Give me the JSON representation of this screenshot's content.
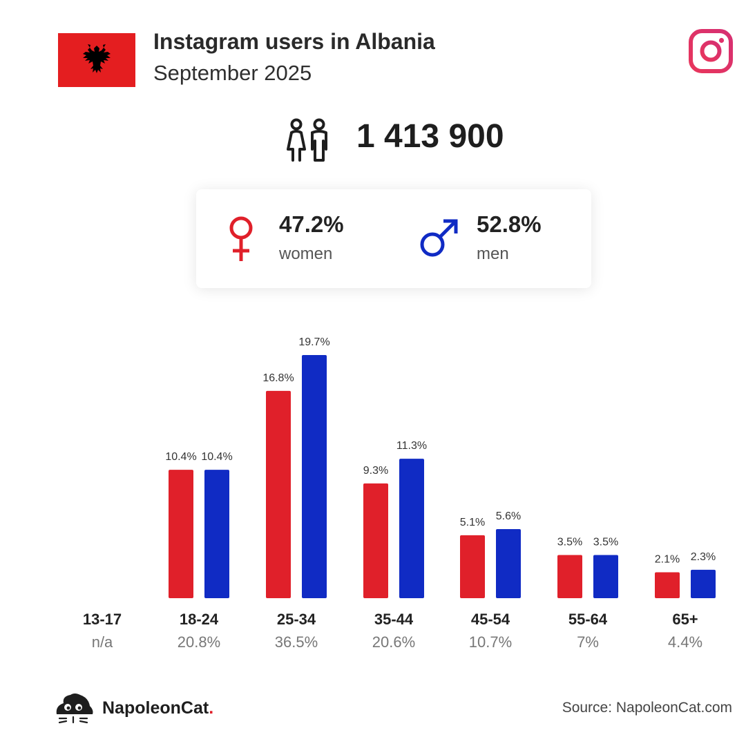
{
  "header": {
    "title": "Instagram users in Albania",
    "subtitle": "September 2025",
    "flag_icon": "albania-flag",
    "platform_icon": "instagram-logo"
  },
  "total": {
    "value": "1 413 900",
    "icon": "people-icon"
  },
  "gender": {
    "women": {
      "percent": "47.2%",
      "label": "women",
      "icon": "female-symbol",
      "color": "#E0202A"
    },
    "men": {
      "percent": "52.8%",
      "label": "men",
      "icon": "male-symbol",
      "color": "#102BC4"
    }
  },
  "chart_data": {
    "type": "bar",
    "categories": [
      "13-17",
      "18-24",
      "25-34",
      "35-44",
      "45-54",
      "55-64",
      "65+"
    ],
    "category_totals": [
      "n/a",
      "20.8%",
      "36.5%",
      "20.6%",
      "10.7%",
      "7%",
      "4.4%"
    ],
    "series": [
      {
        "color": "#E0202A",
        "values": [
          null,
          10.4,
          16.8,
          9.3,
          5.1,
          3.5,
          2.1
        ],
        "labels": [
          "",
          "10.4%",
          "16.8%",
          "9.3%",
          "5.1%",
          "3.5%",
          "2.1%"
        ]
      },
      {
        "color": "#102BC4",
        "values": [
          null,
          10.4,
          19.7,
          11.3,
          5.6,
          3.5,
          2.3
        ],
        "labels": [
          "",
          "10.4%",
          "19.7%",
          "11.3%",
          "5.6%",
          "3.5%",
          "2.3%"
        ]
      }
    ],
    "ylim": [
      0,
      19.7
    ],
    "grid": false
  },
  "footer": {
    "brand_name": "NapoleonCat",
    "brand_dot": ".",
    "source": "Source: NapoleonCat.com"
  }
}
